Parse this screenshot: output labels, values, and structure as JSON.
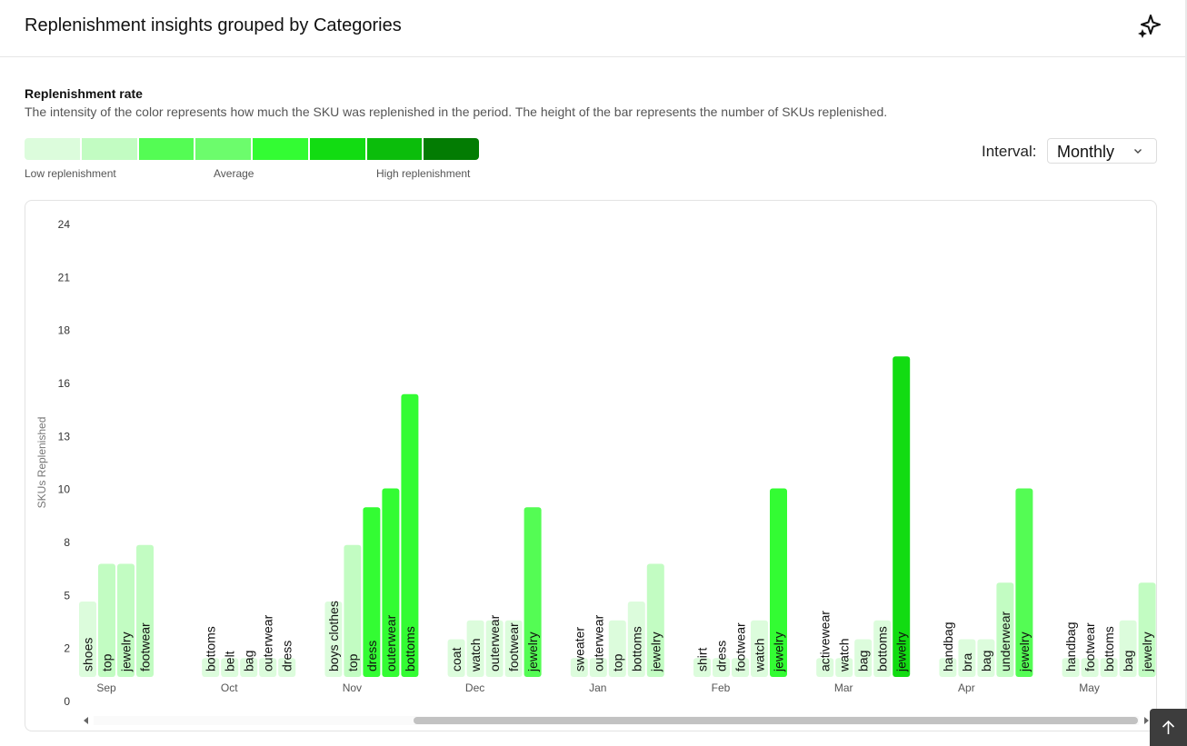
{
  "header": {
    "title": "Replenishment insights grouped by Categories",
    "ai_icon": "sparkle-icon"
  },
  "section": {
    "title": "Replenishment rate",
    "description": "The intensity of the color represents how much the SKU was replenished in the period. The height of the bar represents the number of SKUs replenished."
  },
  "legend": {
    "colors": [
      "#dcfcdc",
      "#c2fcc2",
      "#54fc54",
      "#6cfc6c",
      "#33fc33",
      "#12dc12",
      "#0bbd0b",
      "#037c03"
    ],
    "low_label": "Low replenishment",
    "avg_label": "Average",
    "high_label": "High replenishment"
  },
  "interval": {
    "label": "Interval:",
    "value": "Monthly",
    "icon": "chevron-down-icon"
  },
  "chart_data": {
    "type": "bar",
    "ylabel": "SKUs Replenished",
    "xlabel": "",
    "y_ticks": [
      "0",
      "2",
      "5",
      "8",
      "10",
      "13",
      "16",
      "18",
      "21",
      "24"
    ],
    "ylim": [
      0,
      24
    ],
    "groups": [
      {
        "month": "Sep",
        "bars": [
          {
            "category": "shoes",
            "value": 4,
            "color": "#dcfcdc"
          },
          {
            "category": "top",
            "value": 6,
            "color": "#c2fcc2"
          },
          {
            "category": "jewelry",
            "value": 6,
            "color": "#c2fcc2"
          },
          {
            "category": "footwear",
            "value": 7,
            "color": "#c2fcc2"
          }
        ]
      },
      {
        "month": "Oct",
        "bars": [
          {
            "category": "bottoms",
            "value": 1,
            "color": "#dcfcdc"
          },
          {
            "category": "belt",
            "value": 1,
            "color": "#dcfcdc"
          },
          {
            "category": "bag",
            "value": 1,
            "color": "#dcfcdc"
          },
          {
            "category": "outerwear",
            "value": 1,
            "color": "#dcfcdc"
          },
          {
            "category": "dress",
            "value": 1,
            "color": "#dcfcdc"
          }
        ]
      },
      {
        "month": "Nov",
        "bars": [
          {
            "category": "boys clothes",
            "value": 4,
            "color": "#dcfcdc"
          },
          {
            "category": "top",
            "value": 7,
            "color": "#c2fcc2"
          },
          {
            "category": "dress",
            "value": 9,
            "color": "#33fc33"
          },
          {
            "category": "outerwear",
            "value": 10,
            "color": "#33fc33"
          },
          {
            "category": "bottoms",
            "value": 15,
            "color": "#33fc33"
          }
        ]
      },
      {
        "month": "Dec",
        "bars": [
          {
            "category": "coat",
            "value": 2,
            "color": "#dcfcdc"
          },
          {
            "category": "watch",
            "value": 3,
            "color": "#dcfcdc"
          },
          {
            "category": "outerwear",
            "value": 3,
            "color": "#dcfcdc"
          },
          {
            "category": "footwear",
            "value": 3,
            "color": "#dcfcdc"
          },
          {
            "category": "jewelry",
            "value": 9,
            "color": "#54fc54"
          }
        ]
      },
      {
        "month": "Jan",
        "bars": [
          {
            "category": "sweater",
            "value": 1,
            "color": "#dcfcdc"
          },
          {
            "category": "outerwear",
            "value": 1,
            "color": "#dcfcdc"
          },
          {
            "category": "top",
            "value": 3,
            "color": "#dcfcdc"
          },
          {
            "category": "bottoms",
            "value": 4,
            "color": "#dcfcdc"
          },
          {
            "category": "jewelry",
            "value": 6,
            "color": "#c2fcc2"
          }
        ]
      },
      {
        "month": "Feb",
        "bars": [
          {
            "category": "shirt",
            "value": 1,
            "color": "#dcfcdc"
          },
          {
            "category": "dress",
            "value": 1,
            "color": "#dcfcdc"
          },
          {
            "category": "footwear",
            "value": 1,
            "color": "#dcfcdc"
          },
          {
            "category": "watch",
            "value": 3,
            "color": "#dcfcdc"
          },
          {
            "category": "jewelry",
            "value": 10,
            "color": "#33fc33"
          }
        ]
      },
      {
        "month": "Mar",
        "bars": [
          {
            "category": "activewear",
            "value": 1,
            "color": "#dcfcdc"
          },
          {
            "category": "watch",
            "value": 1,
            "color": "#dcfcdc"
          },
          {
            "category": "bag",
            "value": 2,
            "color": "#dcfcdc"
          },
          {
            "category": "bottoms",
            "value": 3,
            "color": "#dcfcdc"
          },
          {
            "category": "jewelry",
            "value": 17,
            "color": "#12dc12"
          }
        ]
      },
      {
        "month": "Apr",
        "bars": [
          {
            "category": "handbag",
            "value": 1,
            "color": "#dcfcdc"
          },
          {
            "category": "bra",
            "value": 2,
            "color": "#dcfcdc"
          },
          {
            "category": "bag",
            "value": 2,
            "color": "#dcfcdc"
          },
          {
            "category": "underwear",
            "value": 5,
            "color": "#c2fcc2"
          },
          {
            "category": "jewelry",
            "value": 10,
            "color": "#54fc54"
          }
        ]
      },
      {
        "month": "May",
        "bars": [
          {
            "category": "handbag",
            "value": 1,
            "color": "#dcfcdc"
          },
          {
            "category": "footwear",
            "value": 1,
            "color": "#dcfcdc"
          },
          {
            "category": "bottoms",
            "value": 1,
            "color": "#dcfcdc"
          },
          {
            "category": "bag",
            "value": 3,
            "color": "#dcfcdc"
          },
          {
            "category": "jewelry",
            "value": 5,
            "color": "#c2fcc2"
          }
        ]
      }
    ]
  }
}
